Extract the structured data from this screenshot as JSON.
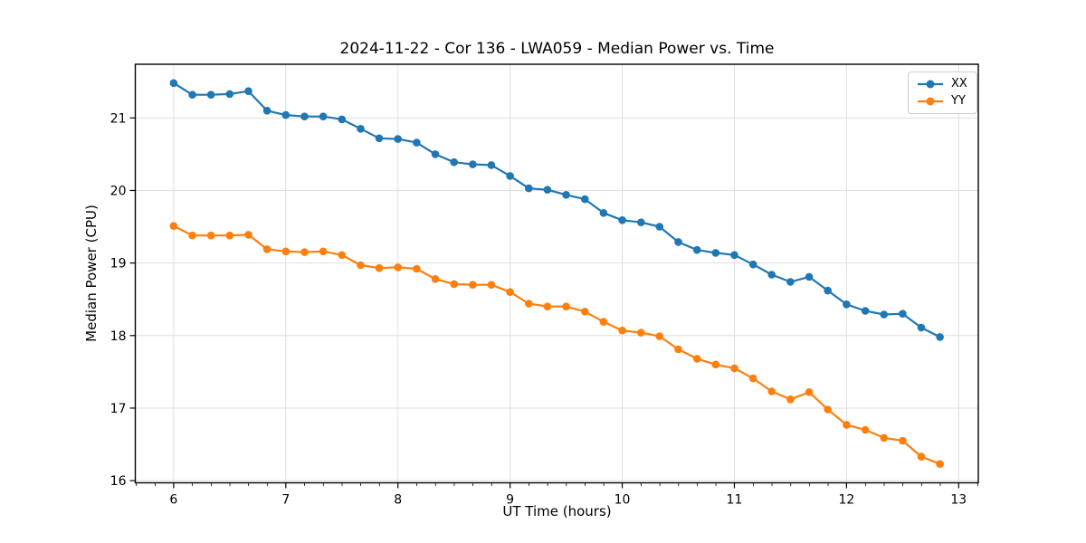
{
  "chart_data": {
    "type": "line",
    "title": "2024-11-22 - Cor 136 - LWA059 - Median Power vs. Time",
    "xlabel": "UT Time (hours)",
    "ylabel": "Median Power (CPU)",
    "xlim": [
      5.658,
      13.175
    ],
    "ylim": [
      15.97,
      21.74
    ],
    "xticks": [
      6,
      7,
      8,
      9,
      10,
      11,
      12,
      13
    ],
    "yticks": [
      16,
      17,
      18,
      19,
      20,
      21
    ],
    "x_minor_tick_interval": 0.1667,
    "grid": true,
    "legend_position": "upper right",
    "colors": {
      "grid": "#dedede",
      "axis": "#000000"
    },
    "x": [
      6,
      6.167,
      6.333,
      6.5,
      6.667,
      6.833,
      7,
      7.167,
      7.333,
      7.5,
      7.667,
      7.833,
      8,
      8.167,
      8.333,
      8.5,
      8.667,
      8.833,
      9,
      9.167,
      9.333,
      9.5,
      9.667,
      9.833,
      10,
      10.167,
      10.333,
      10.5,
      10.667,
      10.833,
      11,
      11.167,
      11.333,
      11.5,
      11.667,
      11.833,
      12,
      12.167,
      12.333,
      12.5,
      12.667,
      12.833
    ],
    "series": [
      {
        "name": "XX",
        "color": "#1f77b4",
        "values": [
          21.48,
          21.32,
          21.32,
          21.33,
          21.37,
          21.1,
          21.04,
          21.02,
          21.02,
          20.98,
          20.85,
          20.72,
          20.71,
          20.66,
          20.5,
          20.39,
          20.36,
          20.35,
          20.2,
          20.03,
          20.01,
          19.94,
          19.88,
          19.69,
          19.59,
          19.56,
          19.5,
          19.29,
          19.18,
          19.14,
          19.11,
          18.98,
          18.84,
          18.74,
          18.81,
          18.62,
          18.43,
          18.34,
          18.29,
          18.3,
          18.11,
          17.98
        ]
      },
      {
        "name": "YY",
        "color": "#ff7f0e",
        "values": [
          19.51,
          19.38,
          19.38,
          19.38,
          19.39,
          19.19,
          19.16,
          19.15,
          19.16,
          19.11,
          18.97,
          18.93,
          18.94,
          18.92,
          18.78,
          18.71,
          18.7,
          18.7,
          18.6,
          18.44,
          18.4,
          18.4,
          18.33,
          18.19,
          18.07,
          18.04,
          17.99,
          17.81,
          17.68,
          17.6,
          17.55,
          17.41,
          17.23,
          17.12,
          17.22,
          16.98,
          16.77,
          16.7,
          16.59,
          16.55,
          16.33,
          16.23
        ]
      }
    ]
  }
}
